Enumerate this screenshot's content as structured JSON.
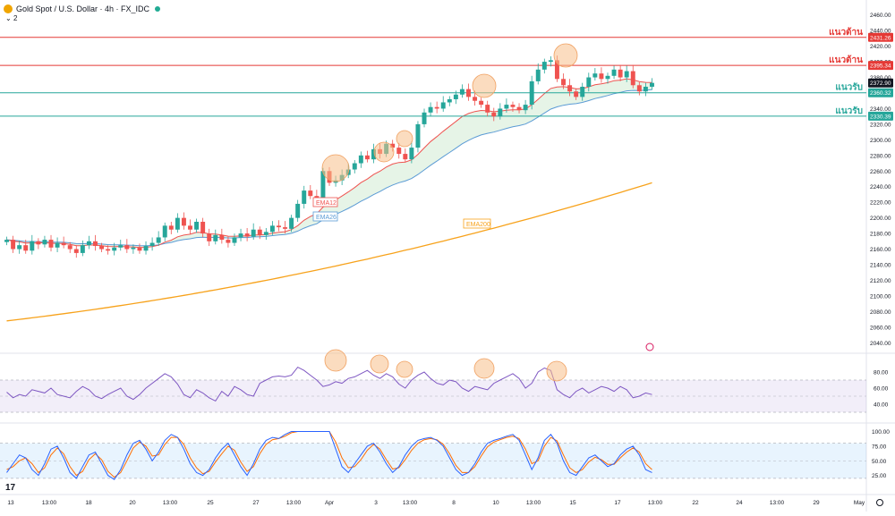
{
  "header": {
    "title": "Gold Spot / U.S. Dollar · 4h · FX_IDC",
    "indicator_count": "2",
    "chevron": "⌄"
  },
  "colors": {
    "up": "#26a69a",
    "down": "#ef5350",
    "ema12": "#ef5350",
    "ema26": "#5b9bd5",
    "ema200": "#f7a21b",
    "resistance": "#e53935",
    "support": "#26a69a",
    "rsi_line": "#7e57c2",
    "stoch_k": "#2962ff",
    "stoch_d": "#ff6d00",
    "circle": "#f7c08a"
  },
  "chart_data": {
    "type": "candlestick",
    "title": "Gold Spot / U.S. Dollar · 4h · FX_IDC",
    "ylim": [
      2030,
      2470
    ],
    "y_ticks": [
      "2460.00",
      "2440.00",
      "2420.00",
      "2400.00",
      "2380.00",
      "2360.00",
      "2340.00",
      "2320.00",
      "2300.00",
      "2280.00",
      "2260.00",
      "2240.00",
      "2220.00",
      "2200.00",
      "2180.00",
      "2160.00",
      "2140.00",
      "2120.00",
      "2100.00",
      "2080.00",
      "2060.00",
      "2040.00"
    ],
    "x_ticks": [
      "13",
      "13:00",
      "18",
      "20",
      "13:00",
      "25",
      "27",
      "13:00",
      "Apr",
      "3",
      "13:00",
      "8",
      "10",
      "13:00",
      "15",
      "17",
      "13:00",
      "22",
      "24",
      "13:00",
      "29",
      "May"
    ],
    "closes": [
      2172,
      2160,
      2165,
      2158,
      2170,
      2166,
      2172,
      2162,
      2168,
      2165,
      2160,
      2155,
      2165,
      2170,
      2164,
      2160,
      2158,
      2162,
      2165,
      2160,
      2162,
      2158,
      2164,
      2168,
      2175,
      2190,
      2185,
      2200,
      2190,
      2185,
      2195,
      2180,
      2170,
      2178,
      2172,
      2168,
      2175,
      2180,
      2176,
      2185,
      2178,
      2182,
      2190,
      2188,
      2186,
      2200,
      2218,
      2235,
      2228,
      2225,
      2260,
      2245,
      2248,
      2255,
      2262,
      2270,
      2280,
      2275,
      2288,
      2282,
      2295,
      2290,
      2282,
      2275,
      2290,
      2320,
      2335,
      2342,
      2340,
      2348,
      2352,
      2358,
      2365,
      2355,
      2350,
      2345,
      2335,
      2330,
      2340,
      2345,
      2342,
      2338,
      2345,
      2375,
      2390,
      2400,
      2402,
      2378,
      2370,
      2362,
      2355,
      2368,
      2380,
      2385,
      2378,
      2382,
      2390,
      2380,
      2388,
      2370,
      2362,
      2368,
      2373
    ],
    "levels": [
      {
        "label": "แนวต้าน",
        "value": 2431.26,
        "value_label": "2431.26",
        "kind": "resistance"
      },
      {
        "label": "แนวต้าน",
        "value": 2395.34,
        "value_label": "2395.34",
        "kind": "resistance"
      },
      {
        "label": "แนวรับ",
        "value": 2360.32,
        "value_label": "2360.32",
        "kind": "support"
      },
      {
        "label": "แนวรับ",
        "value": 2330.39,
        "value_label": "2330.39",
        "kind": "support"
      }
    ],
    "last_price": {
      "value": 2372.9,
      "value_label": "2372.90"
    },
    "ema_labels": {
      "ema12": "EMA12",
      "ema26": "EMA26",
      "ema200": "EMA200"
    },
    "ema200_range": [
      2068,
      2245
    ],
    "rsi": {
      "ylim": [
        20,
        100
      ],
      "y_ticks": [
        "80.00",
        "60.00",
        "40.00"
      ],
      "upper": 70,
      "lower": 30,
      "values": [
        55,
        48,
        52,
        50,
        58,
        56,
        54,
        60,
        52,
        50,
        48,
        56,
        62,
        58,
        50,
        47,
        52,
        56,
        60,
        50,
        46,
        52,
        60,
        66,
        72,
        78,
        74,
        65,
        52,
        48,
        58,
        54,
        48,
        44,
        56,
        50,
        62,
        58,
        52,
        50,
        66,
        70,
        74,
        75,
        74,
        76,
        86,
        82,
        76,
        70,
        62,
        64,
        68,
        66,
        72,
        74,
        78,
        82,
        76,
        72,
        78,
        74,
        65,
        60,
        70,
        76,
        80,
        72,
        66,
        64,
        70,
        68,
        60,
        56,
        62,
        60,
        58,
        66,
        70,
        74,
        78,
        72,
        60,
        66,
        80,
        85,
        82,
        58,
        52,
        48,
        56,
        60,
        54,
        58,
        62,
        60,
        56,
        62,
        58,
        48,
        50,
        54,
        52
      ]
    },
    "stoch": {
      "ylim": [
        0,
        110
      ],
      "y_ticks": [
        "100.00",
        "75.00",
        "50.00",
        "25.00"
      ],
      "upper": 80,
      "lower": 20,
      "k": [
        30,
        45,
        60,
        55,
        35,
        25,
        45,
        70,
        75,
        55,
        30,
        20,
        40,
        60,
        65,
        45,
        25,
        18,
        35,
        60,
        80,
        85,
        70,
        50,
        65,
        85,
        95,
        90,
        70,
        45,
        30,
        25,
        35,
        55,
        70,
        80,
        60,
        40,
        25,
        45,
        70,
        85,
        90,
        88,
        95,
        100,
        100,
        100,
        100,
        100,
        100,
        100,
        70,
        40,
        30,
        45,
        60,
        75,
        80,
        65,
        45,
        30,
        40,
        60,
        75,
        85,
        88,
        90,
        85,
        75,
        55,
        35,
        25,
        30,
        45,
        65,
        80,
        85,
        88,
        92,
        95,
        85,
        60,
        35,
        55,
        85,
        95,
        80,
        50,
        30,
        25,
        40,
        55,
        60,
        50,
        40,
        45,
        60,
        70,
        75,
        60,
        35,
        30
      ],
      "d": [
        35,
        40,
        50,
        55,
        45,
        30,
        38,
        60,
        72,
        62,
        40,
        25,
        32,
        52,
        62,
        52,
        32,
        22,
        30,
        50,
        72,
        82,
        75,
        58,
        60,
        78,
        90,
        90,
        78,
        55,
        38,
        28,
        32,
        48,
        62,
        75,
        68,
        48,
        32,
        40,
        62,
        78,
        86,
        88,
        92,
        98,
        100,
        100,
        100,
        100,
        100,
        100,
        82,
        55,
        38,
        40,
        52,
        68,
        78,
        70,
        52,
        36,
        38,
        52,
        68,
        80,
        86,
        88,
        86,
        78,
        62,
        42,
        30,
        30,
        40,
        58,
        74,
        82,
        86,
        90,
        92,
        88,
        70,
        45,
        50,
        75,
        90,
        84,
        60,
        38,
        30,
        35,
        48,
        56,
        52,
        44,
        44,
        55,
        65,
        72,
        65,
        45,
        35
      ]
    },
    "x_axis_bottom_icon": "settings-gear"
  }
}
